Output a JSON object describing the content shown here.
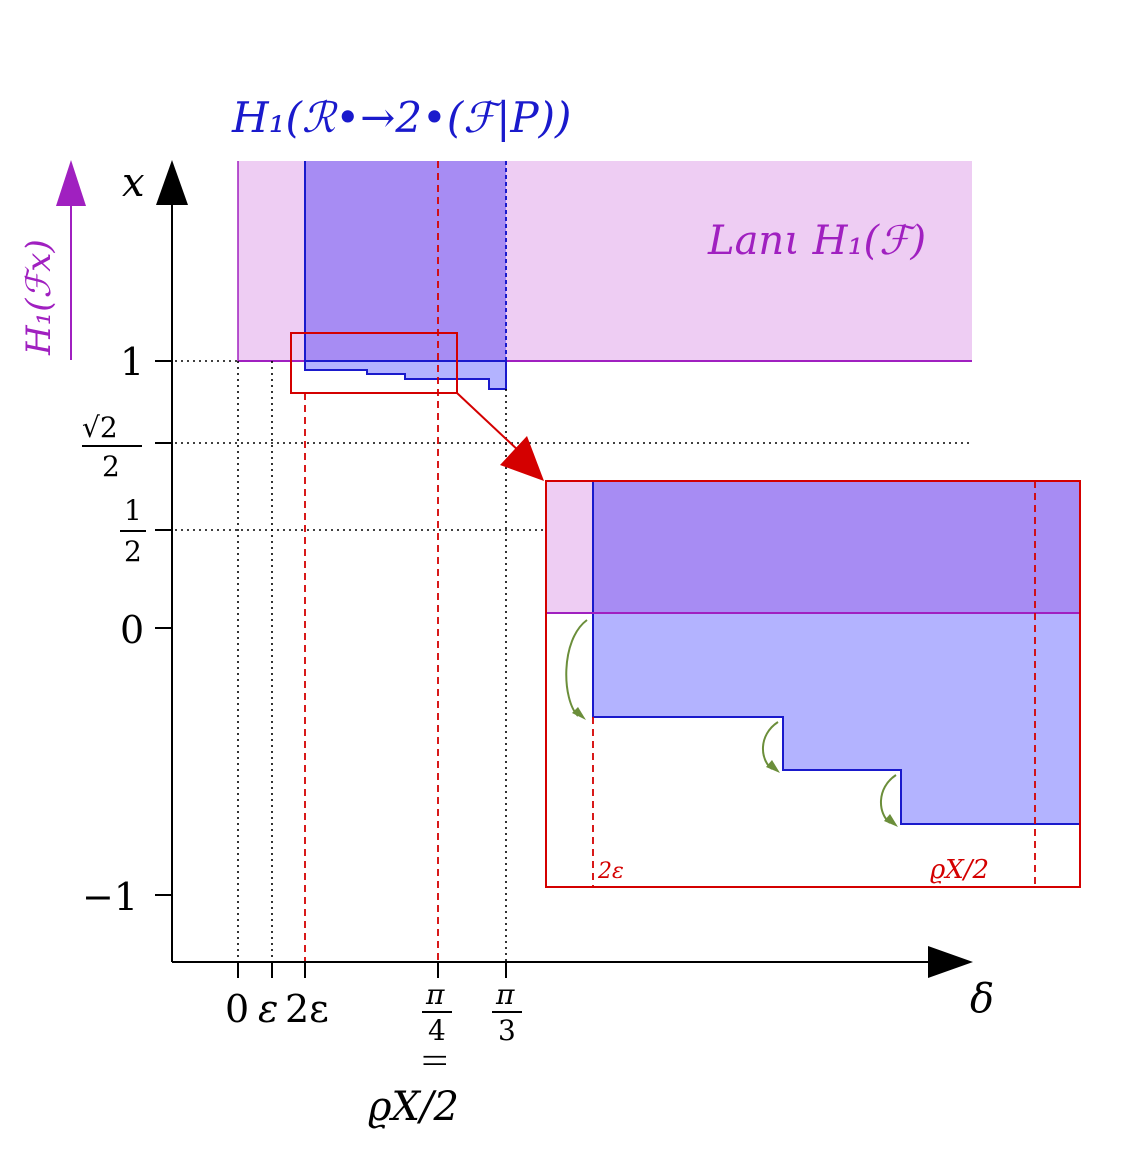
{
  "labels": {
    "blue_title": "H₁(ℛ•→2•(ℱ|P))",
    "lan_label": "Lanι H₁(ℱ)",
    "side_label": "H₁(ℱx)",
    "x_axis": "δ",
    "y_axis": "x"
  },
  "y_ticks": {
    "one": "1",
    "sqrt_num": "√2",
    "sqrt_den": "2",
    "half_num": "1",
    "half_den": "2",
    "zero": "0",
    "minus_one": "−1"
  },
  "x_ticks": {
    "zero": "0",
    "eps": "ε",
    "two_eps": "2ε",
    "pi4_num": "π",
    "pi4_den": "4",
    "equals": "||",
    "rho": "ϱX/2",
    "pi3_num": "π",
    "pi3_den": "3"
  },
  "inset": {
    "two_eps": "2ε",
    "rho": "ϱX/2"
  },
  "colors": {
    "blue": "#1a1acc",
    "magenta": "#a020c0",
    "pink_fill": "#eecdf3",
    "dark_fill": "#a78cf3",
    "light_fill": "#b3b3ff",
    "red": "#d40000",
    "green": "#6b8e3a"
  }
}
